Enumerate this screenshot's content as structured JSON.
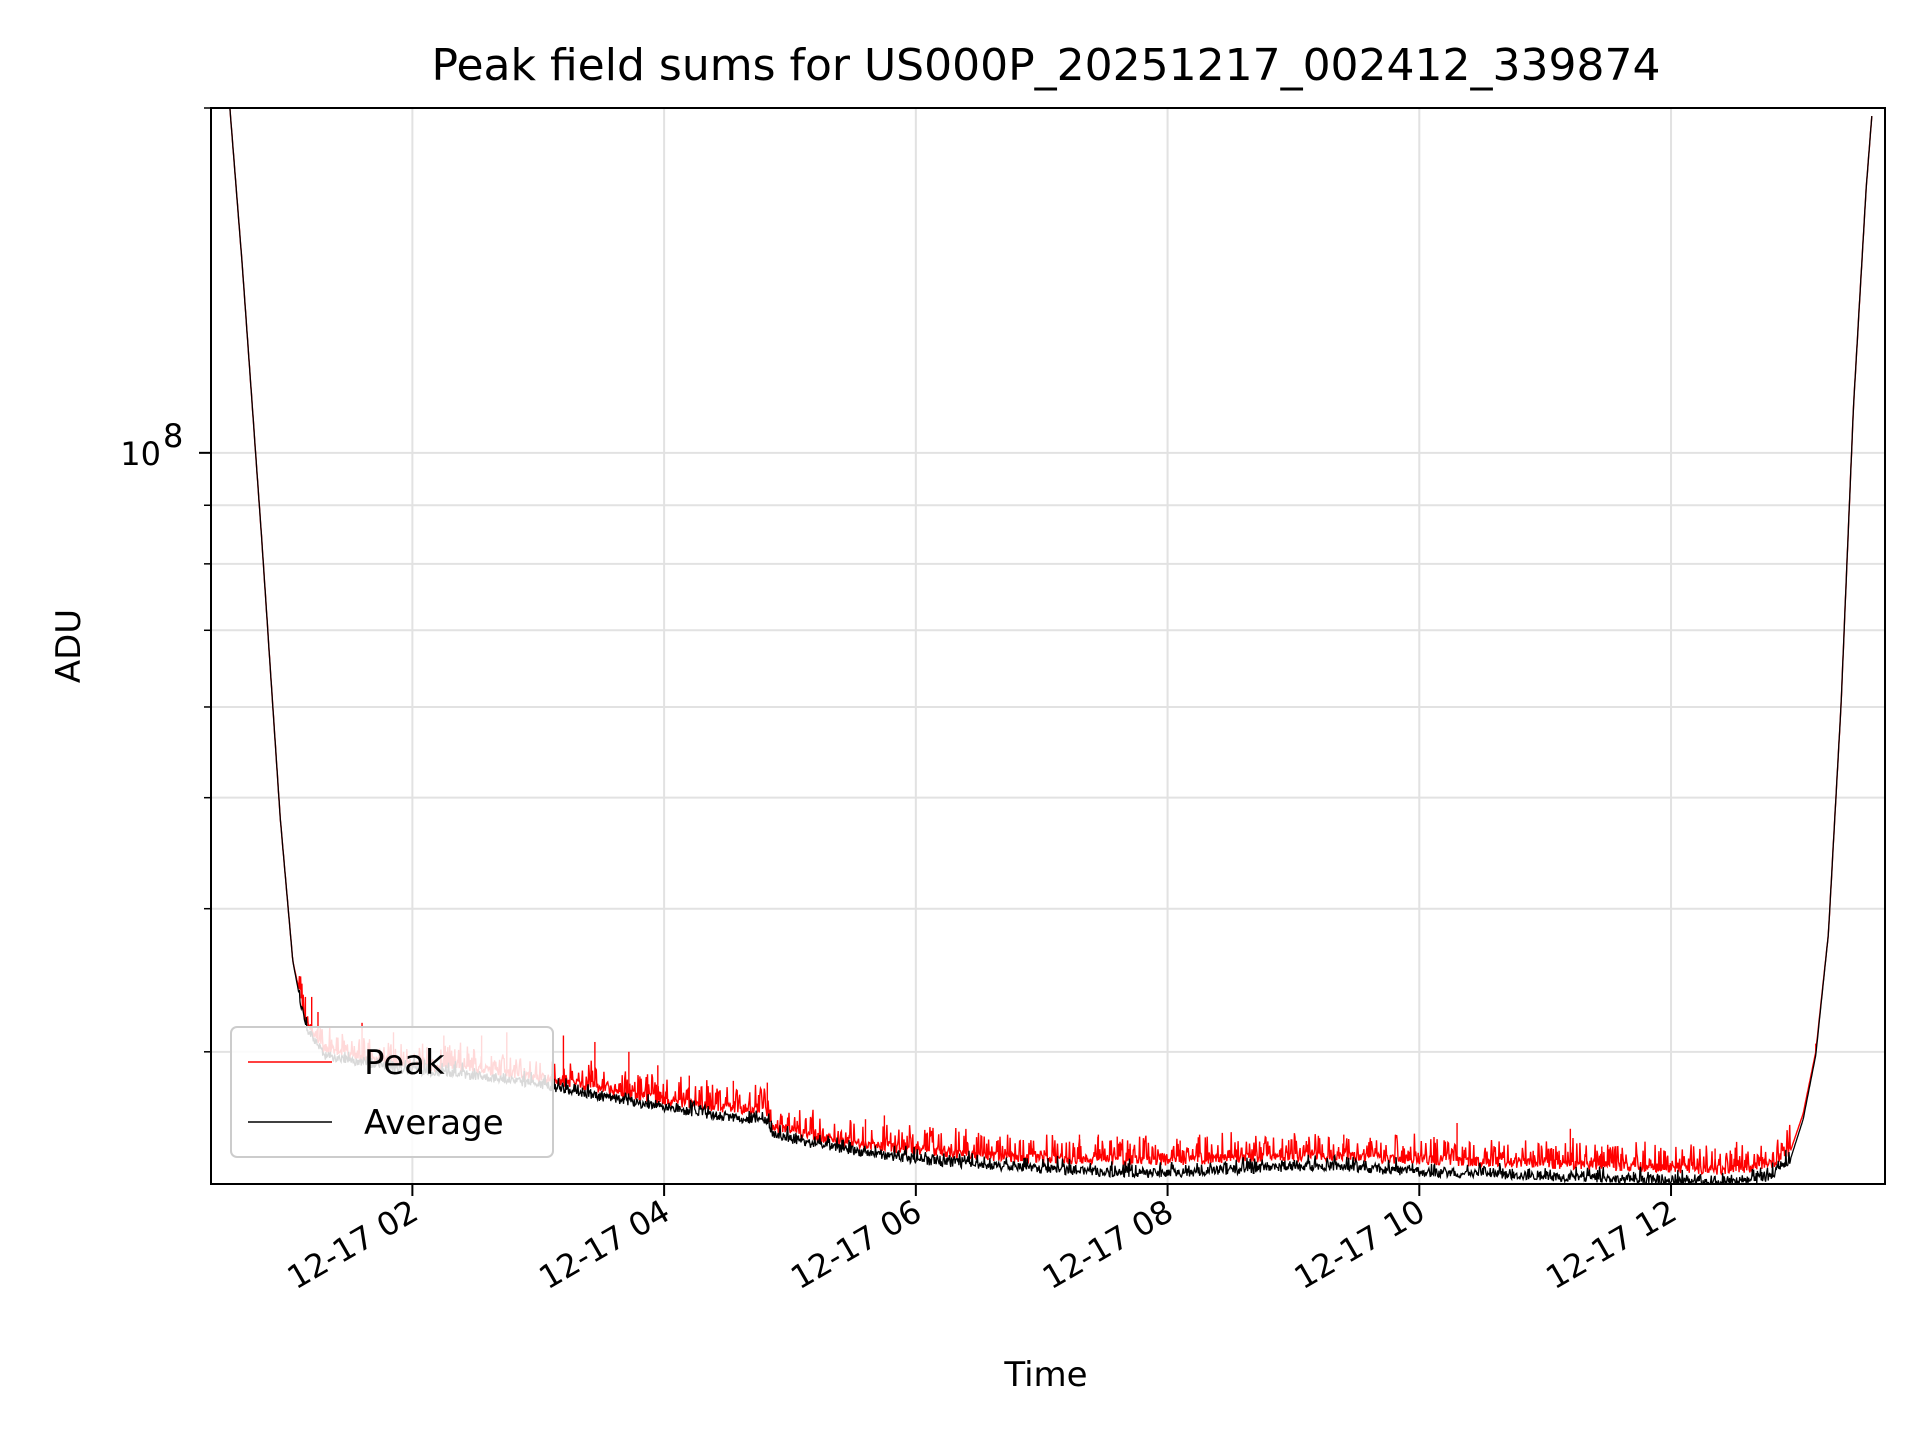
{
  "chart_data": {
    "type": "line",
    "title": "Peak field sums for US000P_20251217_002412_339874",
    "xlabel": "Time",
    "ylabel": "ADU",
    "yscale": "log",
    "ylim": [
      23000000,
      200000000
    ],
    "xlim_hours": [
      0.4,
      13.7
    ],
    "grid": true,
    "legend_position": "lower-left",
    "x_ticks": [
      {
        "hour": 2,
        "label": "12-17 02"
      },
      {
        "hour": 4,
        "label": "12-17 04"
      },
      {
        "hour": 6,
        "label": "12-17 06"
      },
      {
        "hour": 8,
        "label": "12-17 08"
      },
      {
        "hour": 10,
        "label": "12-17 10"
      },
      {
        "hour": 12,
        "label": "12-17 12"
      }
    ],
    "y_ticks": [
      {
        "value": 100000000,
        "base": "10",
        "exponent": "8"
      }
    ],
    "y_minor_ticks": [
      30000000,
      40000000,
      50000000,
      60000000,
      70000000,
      80000000,
      90000000,
      200000000
    ],
    "series": [
      {
        "name": "Peak",
        "color": "#ff0000",
        "baseline": [
          [
            0.55,
            200000000
          ],
          [
            0.65,
            145000000
          ],
          [
            0.8,
            85000000
          ],
          [
            0.95,
            48000000
          ],
          [
            1.05,
            36000000
          ],
          [
            1.15,
            32000000
          ],
          [
            1.3,
            30200000
          ],
          [
            1.6,
            29600000
          ],
          [
            2.0,
            29200000
          ],
          [
            2.5,
            29000000
          ],
          [
            3.0,
            28500000
          ],
          [
            3.5,
            27900000
          ],
          [
            4.0,
            27200000
          ],
          [
            4.5,
            26800000
          ],
          [
            4.83,
            26600000
          ],
          [
            4.86,
            25800000
          ],
          [
            5.2,
            25300000
          ],
          [
            5.6,
            24900000
          ],
          [
            6.0,
            24600000
          ],
          [
            6.5,
            24350000
          ],
          [
            7.0,
            24200000
          ],
          [
            7.5,
            24150000
          ],
          [
            8.0,
            24100000
          ],
          [
            8.5,
            24200000
          ],
          [
            9.0,
            24300000
          ],
          [
            9.3,
            24350000
          ],
          [
            9.6,
            24250000
          ],
          [
            10.0,
            24150000
          ],
          [
            10.5,
            24050000
          ],
          [
            11.0,
            23950000
          ],
          [
            11.5,
            23850000
          ],
          [
            12.0,
            23750000
          ],
          [
            12.3,
            23650000
          ],
          [
            12.6,
            23750000
          ],
          [
            12.8,
            23950000
          ],
          [
            12.95,
            24600000
          ],
          [
            13.05,
            26500000
          ],
          [
            13.15,
            30000000
          ],
          [
            13.25,
            38000000
          ],
          [
            13.35,
            60000000
          ],
          [
            13.45,
            110000000
          ],
          [
            13.55,
            170000000
          ],
          [
            13.6,
            200000000
          ]
        ],
        "spikes": [
          [
            1.15,
            33500000
          ],
          [
            1.2,
            33500000
          ],
          [
            1.25,
            32500000
          ],
          [
            1.6,
            31800000
          ],
          [
            1.85,
            31200000
          ],
          [
            2.25,
            31000000
          ],
          [
            2.55,
            31000000
          ],
          [
            2.75,
            31200000
          ],
          [
            3.2,
            31000000
          ],
          [
            3.45,
            30600000
          ],
          [
            3.72,
            30000000
          ],
          [
            3.95,
            29200000
          ],
          [
            4.2,
            28600000
          ],
          [
            4.55,
            28300000
          ],
          [
            4.82,
            28200000
          ],
          [
            5.6,
            26200000
          ],
          [
            5.75,
            26400000
          ],
          [
            7.3,
            25400000
          ],
          [
            7.45,
            25400000
          ],
          [
            7.6,
            25300000
          ],
          [
            8.1,
            25100000
          ],
          [
            9.4,
            25400000
          ],
          [
            10.3,
            26000000
          ],
          [
            11.2,
            25700000
          ],
          [
            11.45,
            24800000
          ],
          [
            12.35,
            24700000
          ],
          [
            12.7,
            24300000
          ],
          [
            13.15,
            30500000
          ]
        ]
      },
      {
        "name": "Average",
        "color": "#000000",
        "baseline": [
          [
            0.55,
            200000000
          ],
          [
            0.65,
            145000000
          ],
          [
            0.8,
            85000000
          ],
          [
            0.95,
            48000000
          ],
          [
            1.05,
            36000000
          ],
          [
            1.15,
            31500000
          ],
          [
            1.3,
            29800000
          ],
          [
            1.6,
            29300000
          ],
          [
            2.0,
            28900000
          ],
          [
            2.5,
            28600000
          ],
          [
            3.0,
            28100000
          ],
          [
            3.5,
            27400000
          ],
          [
            4.0,
            26800000
          ],
          [
            4.5,
            26300000
          ],
          [
            4.83,
            26100000
          ],
          [
            4.86,
            25400000
          ],
          [
            5.2,
            24900000
          ],
          [
            5.6,
            24500000
          ],
          [
            6.0,
            24150000
          ],
          [
            6.5,
            23900000
          ],
          [
            7.0,
            23700000
          ],
          [
            7.5,
            23550000
          ],
          [
            8.0,
            23500000
          ],
          [
            8.5,
            23650000
          ],
          [
            9.0,
            23800000
          ],
          [
            9.3,
            23850000
          ],
          [
            9.6,
            23700000
          ],
          [
            10.0,
            23550000
          ],
          [
            10.5,
            23450000
          ],
          [
            11.0,
            23350000
          ],
          [
            11.5,
            23250000
          ],
          [
            12.0,
            23150000
          ],
          [
            12.3,
            23050000
          ],
          [
            12.6,
            23150000
          ],
          [
            12.8,
            23350000
          ],
          [
            12.95,
            24200000
          ],
          [
            13.05,
            26200000
          ],
          [
            13.15,
            29800000
          ],
          [
            13.25,
            38000000
          ],
          [
            13.35,
            60000000
          ],
          [
            13.45,
            110000000
          ],
          [
            13.55,
            170000000
          ],
          [
            13.6,
            200000000
          ]
        ]
      }
    ]
  }
}
